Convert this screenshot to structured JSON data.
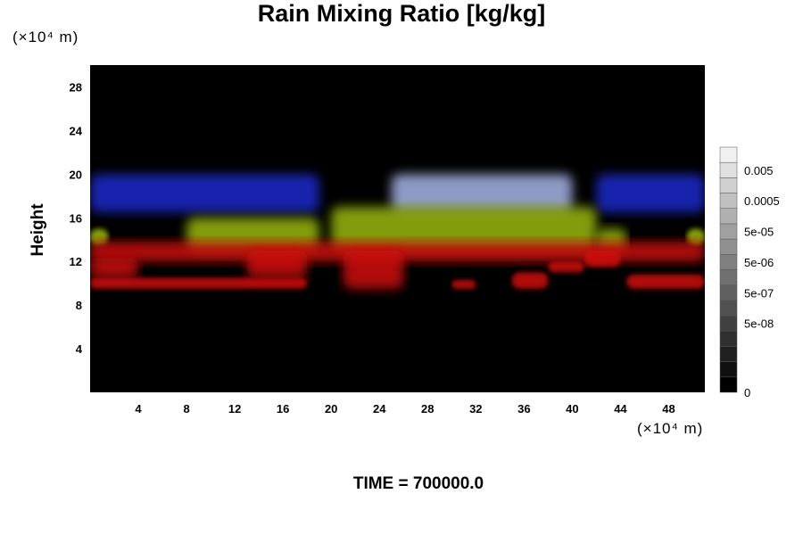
{
  "chart_data": {
    "type": "heatmap",
    "title": "Rain Mixing Ratio [kg/kg]",
    "xlabel": "",
    "ylabel": "Height",
    "x_unit": "(×10⁴ m)",
    "y_unit": "(×10⁴ m)",
    "xlim": [
      0,
      51
    ],
    "ylim": [
      0,
      30
    ],
    "x_ticks": [
      "4",
      "8",
      "12",
      "16",
      "20",
      "24",
      "28",
      "32",
      "36",
      "40",
      "44",
      "48"
    ],
    "x_tick_values": [
      4,
      8,
      12,
      16,
      20,
      24,
      28,
      32,
      36,
      40,
      44,
      48
    ],
    "y_ticks": [
      "4",
      "8",
      "12",
      "16",
      "20",
      "24",
      "28"
    ],
    "y_tick_values": [
      4,
      8,
      12,
      16,
      20,
      24,
      28
    ],
    "background_color": "#000000",
    "colorbar": {
      "labels": [
        "0.005",
        "0.0005",
        "5e-05",
        "5e-06",
        "5e-07",
        "5e-08",
        "0"
      ],
      "label_levels": [
        14.5,
        12.5,
        10.5,
        8.5,
        6.5,
        4.5,
        0
      ],
      "levels": 16,
      "color_low": "#000000",
      "color_high": "#f0f0f0"
    },
    "regions": [
      {
        "color": "#1a2acc",
        "x": [
          0,
          19
        ],
        "y": [
          16.5,
          20
        ]
      },
      {
        "color": "#1a2acc",
        "x": [
          42,
          51
        ],
        "y": [
          16.5,
          20
        ]
      },
      {
        "color": "#a8b4e8",
        "x": [
          25,
          40
        ],
        "y": [
          16.5,
          20
        ]
      },
      {
        "color": "#9ab80c",
        "x": [
          0,
          1.5
        ],
        "y": [
          13.5,
          15
        ]
      },
      {
        "color": "#9ab80c",
        "x": [
          8,
          19
        ],
        "y": [
          13,
          16
        ]
      },
      {
        "color": "#9ab80c",
        "x": [
          20,
          42
        ],
        "y": [
          13,
          17
        ]
      },
      {
        "color": "#9ab80c",
        "x": [
          42,
          44.5
        ],
        "y": [
          13,
          15
        ]
      },
      {
        "color": "#9ab80c",
        "x": [
          49.5,
          51
        ],
        "y": [
          13.5,
          15
        ]
      },
      {
        "color": "#d01010",
        "x": [
          0,
          51
        ],
        "y": [
          12,
          13.8
        ]
      },
      {
        "color": "#d01010",
        "x": [
          0,
          4
        ],
        "y": [
          10.5,
          12.3
        ]
      },
      {
        "color": "#d01010",
        "x": [
          0,
          18
        ],
        "y": [
          9.5,
          10.5
        ]
      },
      {
        "color": "#d01010",
        "x": [
          13,
          18
        ],
        "y": [
          10.5,
          13
        ]
      },
      {
        "color": "#d01010",
        "x": [
          21,
          26
        ],
        "y": [
          9.5,
          13
        ]
      },
      {
        "color": "#d01010",
        "x": [
          30,
          32
        ],
        "y": [
          9.5,
          10.3
        ]
      },
      {
        "color": "#d01010",
        "x": [
          35,
          38
        ],
        "y": [
          9.5,
          11
        ]
      },
      {
        "color": "#d01010",
        "x": [
          38,
          41
        ],
        "y": [
          11,
          12
        ]
      },
      {
        "color": "#d01010",
        "x": [
          41,
          44
        ],
        "y": [
          11.5,
          13
        ]
      },
      {
        "color": "#d01010",
        "x": [
          44.5,
          51
        ],
        "y": [
          9.5,
          10.8
        ]
      }
    ]
  },
  "footer": {
    "time_label": "TIME = 700000.0"
  }
}
